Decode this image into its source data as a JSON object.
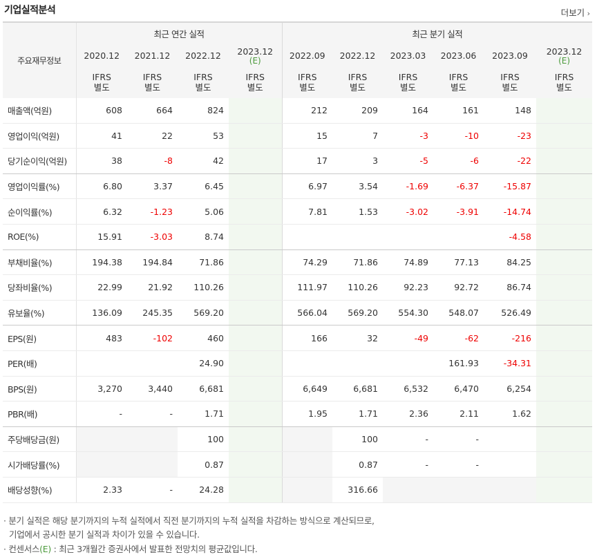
{
  "title": "기업실적분석",
  "more_label": "더보기",
  "more_icon": "chevron-right-icon",
  "header": {
    "label_col": "주요재무정보",
    "annual_group": "최근 연간 실적",
    "quarter_group": "최근 분기 실적",
    "periods": [
      {
        "date": "2020.12",
        "est": "",
        "basis_1": "IFRS",
        "basis_2": "별도"
      },
      {
        "date": "2021.12",
        "est": "",
        "basis_1": "IFRS",
        "basis_2": "별도"
      },
      {
        "date": "2022.12",
        "est": "",
        "basis_1": "IFRS",
        "basis_2": "별도"
      },
      {
        "date": "2023.12",
        "est": "(E)",
        "basis_1": "IFRS",
        "basis_2": "별도"
      },
      {
        "date": "2022.09",
        "est": "",
        "basis_1": "IFRS",
        "basis_2": "별도"
      },
      {
        "date": "2022.12",
        "est": "",
        "basis_1": "IFRS",
        "basis_2": "별도"
      },
      {
        "date": "2023.03",
        "est": "",
        "basis_1": "IFRS",
        "basis_2": "별도"
      },
      {
        "date": "2023.06",
        "est": "",
        "basis_1": "IFRS",
        "basis_2": "별도"
      },
      {
        "date": "2023.09",
        "est": "",
        "basis_1": "IFRS",
        "basis_2": "별도"
      },
      {
        "date": "2023.12",
        "est": "(E)",
        "basis_1": "IFRS",
        "basis_2": "별도"
      }
    ]
  },
  "rows": [
    {
      "label": "매출액(억원)",
      "values": [
        "608",
        "664",
        "824",
        "",
        "212",
        "209",
        "164",
        "161",
        "148",
        ""
      ]
    },
    {
      "label": "영업이익(억원)",
      "values": [
        "41",
        "22",
        "53",
        "",
        "15",
        "7",
        "-3",
        "-10",
        "-23",
        ""
      ]
    },
    {
      "label": "당기순이익(억원)",
      "values": [
        "38",
        "-8",
        "42",
        "",
        "17",
        "3",
        "-5",
        "-6",
        "-22",
        ""
      ]
    },
    {
      "label": "영업이익률(%)",
      "values": [
        "6.80",
        "3.37",
        "6.45",
        "",
        "6.97",
        "3.54",
        "-1.69",
        "-6.37",
        "-15.87",
        ""
      ]
    },
    {
      "label": "순이익률(%)",
      "values": [
        "6.32",
        "-1.23",
        "5.06",
        "",
        "7.81",
        "1.53",
        "-3.02",
        "-3.91",
        "-14.74",
        ""
      ]
    },
    {
      "label": "ROE(%)",
      "values": [
        "15.91",
        "-3.03",
        "8.74",
        "",
        "",
        "",
        "",
        "",
        "-4.58",
        ""
      ]
    },
    {
      "label": "부채비율(%)",
      "values": [
        "194.38",
        "194.84",
        "71.86",
        "",
        "74.29",
        "71.86",
        "74.89",
        "77.13",
        "84.25",
        ""
      ]
    },
    {
      "label": "당좌비율(%)",
      "values": [
        "22.99",
        "21.92",
        "110.26",
        "",
        "111.97",
        "110.26",
        "92.23",
        "92.72",
        "86.74",
        ""
      ]
    },
    {
      "label": "유보율(%)",
      "values": [
        "136.09",
        "245.35",
        "569.20",
        "",
        "566.04",
        "569.20",
        "554.30",
        "548.07",
        "526.49",
        ""
      ]
    },
    {
      "label": "EPS(원)",
      "values": [
        "483",
        "-102",
        "460",
        "",
        "166",
        "32",
        "-49",
        "-62",
        "-216",
        ""
      ]
    },
    {
      "label": "PER(배)",
      "values": [
        "",
        "",
        "24.90",
        "",
        "",
        "",
        "",
        "161.93",
        "-34.31",
        ""
      ]
    },
    {
      "label": "BPS(원)",
      "values": [
        "3,270",
        "3,440",
        "6,681",
        "",
        "6,649",
        "6,681",
        "6,532",
        "6,470",
        "6,254",
        ""
      ]
    },
    {
      "label": "PBR(배)",
      "values": [
        "-",
        "-",
        "1.71",
        "",
        "1.95",
        "1.71",
        "2.36",
        "2.11",
        "1.62",
        ""
      ]
    },
    {
      "label": "주당배당금(원)",
      "values": [
        "",
        "",
        "100",
        "",
        "",
        "100",
        "-",
        "-",
        "",
        ""
      ]
    },
    {
      "label": "시가배당률(%)",
      "values": [
        "",
        "",
        "0.87",
        "",
        "",
        "0.87",
        "-",
        "-",
        "",
        ""
      ]
    },
    {
      "label": "배당성향(%)",
      "values": [
        "2.33",
        "-",
        "24.28",
        "",
        "",
        "316.66",
        "",
        "",
        "",
        ""
      ]
    }
  ],
  "notes": {
    "line1": "분기 실적은 해당 분기까지의 누적 실적에서 직전 분기까지의 누적 실적을 차감하는 방식으로 계산되므로,",
    "line2": "기업에서 공시한 분기 실적과 차이가 있을 수 있습니다.",
    "line3_pre": "컨센서스",
    "line3_est": "(E)",
    "line3_post": " : 최근 3개월간 증권사에서 발표한 전망치의 평균값입니다."
  },
  "colors": {
    "negative": "#ee0000",
    "estimate": "#4b9a3b",
    "ifrs": "#e8710a",
    "estimate_column_bg": "#f2f8f0",
    "header_bg": "#f5f5f5"
  }
}
